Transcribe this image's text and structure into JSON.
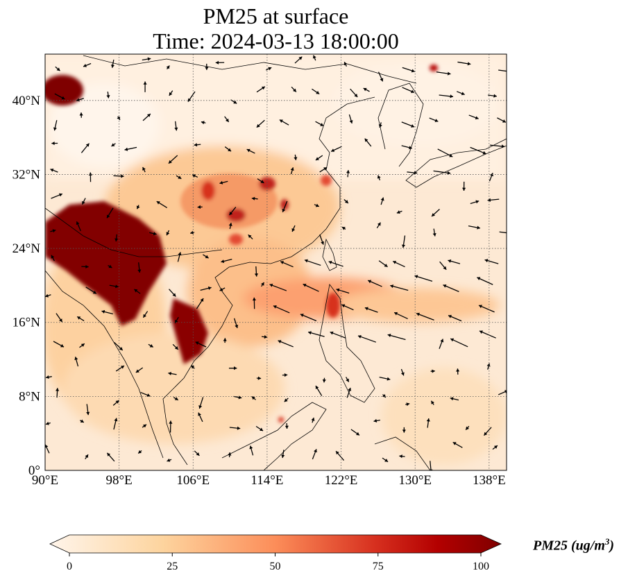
{
  "title": {
    "line1": "PM25 at surface",
    "line2": "Time: 2024-03-13 18:00:00"
  },
  "chart_data": {
    "type": "heatmap",
    "variable": "PM25",
    "lon_range": [
      90,
      140
    ],
    "lat_range": [
      0,
      45
    ],
    "x_ticks": [
      "90°E",
      "98°E",
      "106°E",
      "114°E",
      "122°E",
      "130°E",
      "138°E"
    ],
    "x_tick_values": [
      90,
      98,
      106,
      114,
      122,
      130,
      138
    ],
    "y_ticks": [
      "0°",
      "8°N",
      "16°N",
      "24°N",
      "32°N",
      "40°N"
    ],
    "y_tick_values": [
      0,
      8,
      16,
      24,
      32,
      40
    ],
    "grid": true,
    "colorbar": {
      "label": "PM25 (ug/m",
      "label_exp": "3",
      "label_close": ")",
      "ticks": [
        "0",
        "25",
        "50",
        "75",
        "100"
      ],
      "tick_values": [
        0,
        25,
        50,
        75,
        100
      ],
      "range": [
        0,
        100
      ],
      "colormap": [
        "#fff5eb",
        "#fdd49e",
        "#fc8d59",
        "#d7301f",
        "#b30000",
        "#7f0000"
      ],
      "extend": "both"
    }
  }
}
